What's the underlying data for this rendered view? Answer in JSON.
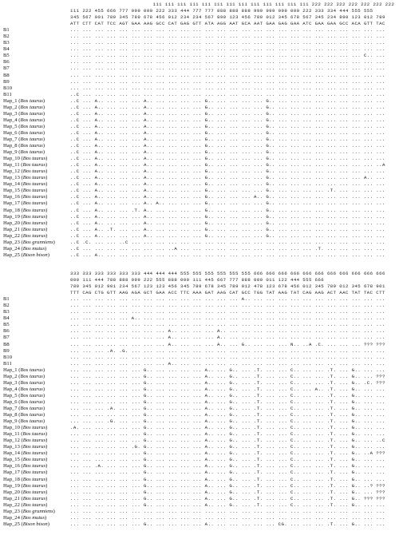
{
  "blocks": [
    {
      "header": [
        "                           111 111 111 111 111 111 111 111 111 111 111 111 111 222 222 222 222 222 222 222",
        "111 222 455 666 777 999 000 222 333 444 777 777 888 888 888 999 999 999 000 222 333 334 444 555 555",
        "345 567 901 789 345 789 678 456 012 234 234 567 890 123 456 789 012 345 678 567 345 234 890 123 012 789",
        "ATT CTT CAT TCC AGT GAA AAG GCC CAT GAG GTT ATA AGG AAT GCA AAT GAA GAG GAA ATC GAA GAA GCC ACA GTT TAC"
      ],
      "rows": [
        {
          "id": "B1",
          "species": "",
          "seq": "... ... ... ... ... ... ... ... ... ... ... ... ... ... ... ... ... ... ... ... ... ... ... ... ... ..."
        },
        {
          "id": "B2",
          "species": "",
          "seq": "... ... ... ... ... ... ... ... ... ... ... ... ... ... ... ... ... ... ... ... ... ... ... ... ... ..."
        },
        {
          "id": "B3",
          "species": "",
          "seq": "... ... ... ... ... ... ... ... ... ... ... ... ... ... ... ... ... ... ... ... ... ... ... ... ... ..."
        },
        {
          "id": "B4",
          "species": "",
          "seq": "... ... ... ... ... ... ... ... ... ... ... ... ... ... ... ... ... ... ... ... ... ... ... ... ... ..."
        },
        {
          "id": "B5",
          "species": "",
          "seq": "... ... ... ... ... ... ... ... ... ... ... ... ... ... ... ... ... ... ... ... ... ... ... ... C.. ..."
        },
        {
          "id": "B6",
          "species": "",
          "seq": "... ... ... ... ... ... ... ... ... ... ... ... ... ... ... ... ... ... ... ... ... ... ... ... ... ..."
        },
        {
          "id": "B7",
          "species": "",
          "seq": "... ... ... ... ... ... ... ... ... ... ... ... ... ... ... ... ... ... ... ... ... ... ... ... ... ..."
        },
        {
          "id": "B8",
          "species": "",
          "seq": "... ... ... ... ... ... ... ... ... ... ... ... ... ... ... ... ... ... ... ... ... ... ... ... ... ..."
        },
        {
          "id": "B9",
          "species": "",
          "seq": "... ... ... ... ... ... ... ... ... ... ... ... ... ... ... ... ... ... ... ... ... ... ... ... ... ..."
        },
        {
          "id": "B10",
          "species": "",
          "seq": "... ... ... ... ... ... ... ... ... ... ... ... ... ... ... ... ... ... ... ... ... ... ... ... ... ..."
        },
        {
          "id": "B11",
          "species": "",
          "seq": "..C ... ... ... ... ... ... ... ... ... ... ... ... ... ... ... ... ... ... ... ... ... ... ... ... ..."
        },
        {
          "id": "Hap_1",
          "species": "Bos taurus",
          "seq": "..C ... A.. ... ... ... A.. ... ... ... ... G.. ... ... ... ... G.. ... ... ... ... ... ... ... ... ..."
        },
        {
          "id": "Hap_2",
          "species": "Bos taurus",
          "seq": "..C ... A.. ... ... ... A.. ... ... ... ... G.. ... ... ... ... G.. ... ... ... ... ... ... ... ... ..."
        },
        {
          "id": "Hap_3",
          "species": "Bos taurus",
          "seq": "..C ... A.. ... ... ... A.. ... ... ... ... G.. ... ... ... ... G.. ... ... ... ... ... ... ... ... ..."
        },
        {
          "id": "Hap_4",
          "species": "Bos taurus",
          "seq": "..C ... A.. ... ... ... A.. ... ... ... ... G.. ... ... ... ... G.. ... ... ... ... ... ... ... ... ..."
        },
        {
          "id": "Hap_5",
          "species": "Bos taurus",
          "seq": "..C ... A.. ... ... ... A.. ... ... ... ... G.. ... ... ... ... G.. ... ... ... ... ... ... ... ... ..."
        },
        {
          "id": "Hap_6",
          "species": "Bos taurus",
          "seq": "..C ... A.. ... ... ... A.. ... ... ... ... G.. ... ... ... ... G.. ... ... ... ... ... ... ... ... ..."
        },
        {
          "id": "Hap_7",
          "species": "Bos taurus",
          "seq": "..C ... A.. ... ... ... A.. ... ... ... ... G.. ... ... ... ... G.. ... ... ... ... ... ... ... ... ..."
        },
        {
          "id": "Hap_8",
          "species": "Bos taurus",
          "seq": "..C ... A.. ... ... ... A.. ... ... ... ... G.. ... ... ... ... G.. ... ... ... ... ... ... ... ... ..."
        },
        {
          "id": "Hap_9",
          "species": "Bos taurus",
          "seq": "..C ... A.. ... ... ... A.. ... ... ... ... G.. ... ... ... ... G.. ... ... ... ... ... ... ... ... ..."
        },
        {
          "id": "Hap_10",
          "species": "Bos taurus",
          "seq": "..C ... A.. ... ... ... A.. ... ... ... ... G.. ... ... ... ... G.. ... ... ... ... ... ... ... ... ..."
        },
        {
          "id": "Hap_11",
          "species": "Bos taurus",
          "seq": "..C ... A.. ... ... ... A.. ... ... ... ... G.. ... ... ... ... G.. ... ... ... ... ... ... ... ... ..A"
        },
        {
          "id": "Hap_12",
          "species": "Bos taurus",
          "seq": "..C ... A.. ... ... ... A.. ... ... ... ... G.. ... ... ... ... G.. ... ... ... ... ... ... ... ... ..."
        },
        {
          "id": "Hap_13",
          "species": "Bos taurus",
          "seq": "..C ... A.. ... ... ... A.. ... ... ... ... G.. ... ... ... ... G.. ... ... ... ... ... ... ... A.. ..."
        },
        {
          "id": "Hap_14",
          "species": "Bos taurus",
          "seq": "..C ... A.. ... ... ... A.. ... ... ... ... G.. ... ... ... ... G.. ... ... ... ... ... ... ... ... ..."
        },
        {
          "id": "Hap_15",
          "species": "Bos taurus",
          "seq": "..C ... A.. ... ... ... A.. ... ... ... ... G.. ... ... ... ... G.. ... ... ... ... .T. ... ... ... ..."
        },
        {
          "id": "Hap_16",
          "species": "Bos taurus",
          "seq": "..C ... A.. ... ... ... A.. ... ... ... ... G.. ... ... ... A.. G.. ... ... ... ... ... ... ... ... ..."
        },
        {
          "id": "Hap_17",
          "species": "Bos taurus",
          "seq": "..C ... A.. ... ... ... A.. A.. ... ... ... G.. ... ... ... ... G.. ... ... ... ... ... ... ... ... ..."
        },
        {
          "id": "Hap_18",
          "species": "Bos taurus",
          "seq": "..C ... A.. ... ... .T. A.. ... ... ... ... G.. ... ... ... ... G.. ... ... ... ... ... ... ... ... ..."
        },
        {
          "id": "Hap_19",
          "species": "Bos taurus",
          "seq": "..C ... A.. ... ... ... A.. ... ... ... ... G.. ... ... ... ... G.. ... ... ... ... ... ... ... ... ..."
        },
        {
          "id": "Hap_20",
          "species": "Bos taurus",
          "seq": "..C ... A.. ... ... ... A.. ... ... ... ... G.. ... ... ... ... G.. ... ... ... ... ... ... ... ... ..."
        },
        {
          "id": "Hap_21",
          "species": "Bos taurus",
          "seq": "..C ... A.. .T. ... ... A.. ... ... ... ... G.. ... ... ... ... G.. ... ... ... ... ... ... ... ... ..."
        },
        {
          "id": "Hap_22",
          "species": "Bos taurus",
          "seq": "..C ... A.. ... ... ... A.. ... ... ... ... G.. ... ... ... ... G.. ... ... ... ... ... ... ... ... ..."
        },
        {
          "id": "Hap_23",
          "species": "Bos grunniens",
          "seq": "..C .C. ... ... ..C ... ... ... ... ... ... ... ... ... ... ... ... ... ... ... ... ... ... ... ... ..."
        },
        {
          "id": "Hap_24",
          "species": "Bos mutus",
          "seq": "..C ... ... ... ... ... ... ... ..A ... ... ... ... ... ... ... ... ... ... ... .T. ... ... ... ... ..."
        },
        {
          "id": "Hap_25",
          "species": "Bison bison",
          "seq": "..C ... A.. ... ... ... ... ... ... ... ... ... ... ... ... ... ... ... ... ... ... ... ... ... ... ..."
        }
      ]
    },
    {
      "header": [
        "333 333 333 333 333 333 444 444 444 555 555 555 555 555 555 666 666 666 666 666 666 666 666 666 666 666",
        "000 111 444 788 888 999 222 555 888 000 111 445 667 777 888 000 011 122 444 555 666",
        "789 345 012 901 234 567 123 123 456 345 789 678 345 789 012 478 123 678 456 012 345 789 012 345 678 901",
        "TTT CAG CTG GTT AAG AGA GCT GAA ACC TTC AAA GAT AAG CAT GCC TGG TAT AAG TAT CAG AAG ACT AAC TAT TAC CTT"
      ],
      "rows": [
        {
          "id": "B1",
          "species": "",
          "seq": "... ... ... ... ... ... ... ... ... ... ... ... ... ... A.. ... ... ... ... ... ... ... ... ... ... ..."
        },
        {
          "id": "B2",
          "species": "",
          "seq": "... ... ... ... ... ... ... ... ... ... ... ... ... ... ... ... ... ... ... ... ... ... ... ... ... ..."
        },
        {
          "id": "B3",
          "species": "",
          "seq": "... ... ... ... ... ... ... ... ... ... ... ... ... ... ... ... ... ... ... ... ... ... ... ... ... ..."
        },
        {
          "id": "B4",
          "species": "",
          "seq": "... ... ... ... ... A.. ... ... ... ... ... ... ... ... ... ... ... ... ... ... ... ... ... ... ... ..."
        },
        {
          "id": "B5",
          "species": "",
          "seq": "... ... ... ... ... ... ... ... ... ... ... ... ... ... ... ... ... ... ... ... ... ... ... ... ... ..."
        },
        {
          "id": "B6",
          "species": "",
          "seq": "... ... ... ... ... ... ... ... A.. ... ... ... A.. ... ... ... ... ... ... ... ... ... ... ... ... ..."
        },
        {
          "id": "B7",
          "species": "",
          "seq": "... ... ... ... ... ... ... ... A.. ... ... ... A.. ... ... ... ... ... ... ... ... ... ... ... ... ..."
        },
        {
          "id": "B8",
          "species": "",
          "seq": "... ... ... ... ... ... ... ... A.. ... ... ... A.. ... G.. ... ... ... N.. ..A .C. ... ... ... ??? ???"
        },
        {
          "id": "B9",
          "species": "",
          "seq": "... ... ... .A. .G. ... ... ... ... ... ... ... ... ... ... ... ... ... ... ... ... ... ... ... ... ..."
        },
        {
          "id": "B10",
          "species": "",
          "seq": "... ... ... ... ... ... ... ... ... ... ... ... ... ... ... ... ... ... ... ... ... ... ... ... ... ..."
        },
        {
          "id": "B11",
          "species": "",
          "seq": "... ... ... ... ... ... ... ... A.. ... ... ... ... ... ... ... ... ... ... ... ... ... ... ... ... ..."
        },
        {
          "id": "Hap_1",
          "species": "Bos taurus",
          "seq": "... ... ... ... ... ... G.. ... ... ... ... A.. ... G.. ... .T. ... ... C.. ... ... .T. ... G.. ... ..."
        },
        {
          "id": "Hap_2",
          "species": "Bos taurus",
          "seq": "... ... ... ... ... ... G.. ... ... ... ... A.. ... G.. ... .T. ... ... C.. ... ... .T. ... G.. ... ???"
        },
        {
          "id": "Hap_3",
          "species": "Bos taurus",
          "seq": "... ... ... ... ... ... G.. ... ... ... ... A.. ... G.. ... .T. ... ... C.. ... ... .T. ... G.. .C. ???"
        },
        {
          "id": "Hap_4",
          "species": "Bos taurus",
          "seq": "... ... ... ... ... ... G.. ... ... ... ... A.. ... G.. ... .T. ... ... C.. ... A.. .T. ... G.. ... ..."
        },
        {
          "id": "Hap_5",
          "species": "Bos taurus",
          "seq": "... ... ... ... ... ... G.. ... ... ... ... A.. ... G.. ... .T. ... ... C.. ... ... .T. ... G.. ... ..."
        },
        {
          "id": "Hap_6",
          "species": "Bos taurus",
          "seq": "... ... ... ... ... ... G.. ... ... ... ... A.. ... G.. ... .T. ... ... C.. ... ... .T. ... G.. ... ..."
        },
        {
          "id": "Hap_7",
          "species": "Bos taurus",
          "seq": "... ... ... .A. ... ... G.. ... ... ... ... A.. ... G.. ... .T. ... ... C.. ... ... .T. ... G.. ... ..."
        },
        {
          "id": "Hap_8",
          "species": "Bos taurus",
          "seq": "... ... ... ... ... ... G.. ... ... ... ... A.. ... G.. ... .T. ... ... C.. ... ... .T. ... G.. ... ..."
        },
        {
          "id": "Hap_9",
          "species": "Bos taurus",
          "seq": "... ... ... .G. ... ... G.. ... ... ... ... A.. ... G.. ... .T. ... ... C.. ... ... .T. ... G.. ... ..."
        },
        {
          "id": "Hap_10",
          "species": "Bos taurus",
          "seq": ".A. ... ... ... ... ... G.. ... ... ... ... A.. ... G.. ... .T. ... ... C.. ... ... .T. ... G.. ... ..."
        },
        {
          "id": "Hap_11",
          "species": "Bos taurus",
          "seq": "... ... ... ... ... ... G.. ... ... ... ... A.. ... G.. ... .T. ... ... C.. ... ... .T. ... G.. ... ..."
        },
        {
          "id": "Hap_12",
          "species": "Bos taurus",
          "seq": "... ... ... ... ... ... G.. ... ... ... ... A.. ... G.. ... .T. ... ... C.. ... ... .T. ... G.. ... ..C"
        },
        {
          "id": "Hap_13",
          "species": "Bos taurus",
          "seq": "... ... ... ... ... .G. G.. ... ... ... ... A.. ... G.. ... .T. ... ... C.. ... ... .T. ... G.. ... ..."
        },
        {
          "id": "Hap_14",
          "species": "Bos taurus",
          "seq": "... ... ... ... ... ... G.. ... ... ... ... A.. ... G.. ... .T. ... ... C.. ... ... .T. ... G.. ..A ???"
        },
        {
          "id": "Hap_15",
          "species": "Bos taurus",
          "seq": "... ... ... ... ... ... G.. ... ... ... ... A.. ... G.. ... .T. ... ... C.. ... ... .T. ... G.. ... ..."
        },
        {
          "id": "Hap_16",
          "species": "Bos taurus",
          "seq": "... ... .A. ... ... ... G.. ... ... ... ... A.. ... G.. ... .T. ... ... C.. ... ... .T. ... G.. ... ..."
        },
        {
          "id": "Hap_17",
          "species": "Bos taurus",
          "seq": "... ... ... ... ... ... G.. ... ... ... ... A.. ... G.. ... .T. ... ... C.. ... ... .T. ... G.. ... ..."
        },
        {
          "id": "Hap_18",
          "species": "Bos taurus",
          "seq": "... ... ... ... ... ... G.. ... ... ... ... A.. ... G.. ... .T. ... ... C.. ... ... .T. ... G.. ... ..."
        },
        {
          "id": "Hap_19",
          "species": "Bos taurus",
          "seq": "... ... ... ... ... ... G.. ... ... ... ... A.. ... G.. ... .T. ... ... C.. ... ... .T. ... G.. ..? ???"
        },
        {
          "id": "Hap_20",
          "species": "Bos taurus",
          "seq": "... ... ... ... ... ... G.. ... ... ... ... A.. ... G.. ... .T. ... ... C.. ... ... .T. ... G.. ... ???"
        },
        {
          "id": "Hap_21",
          "species": "Bos taurus",
          "seq": "... ... ... ... ... ... G.. ... ... ... ... A.. ... G.. ... .T. ... ... C.. ... ... .T. ... G.. ??? ???"
        },
        {
          "id": "Hap_22",
          "species": "Bos taurus",
          "seq": "... ... ... ... ... ... G.. ... ... ... ... A.. ... G.. ... .T. ... ... C.. ... ... .T. ... G.. ... ..."
        },
        {
          "id": "Hap_23",
          "species": "Bos grunniens",
          "seq": "... ... ... ... ... ... ... ... ... ... ... ... ... ... ... ... ... ... ... ... ... ... ... ... ... ..."
        },
        {
          "id": "Hap_24",
          "species": "Bos mutus",
          "seq": "... ... ... ... ... ... ... ... ... ... ... ... ... ... ... ... ... ... ... ... ... ... ... ... ... ..."
        },
        {
          "id": "Hap_25",
          "species": "Bison bison",
          "seq": "... ... ... ... ... ... G.. ... ... ... ... A.. ... ... ... ... ... CG. ... ... ... .T. ... G.. ... ..."
        }
      ]
    }
  ]
}
